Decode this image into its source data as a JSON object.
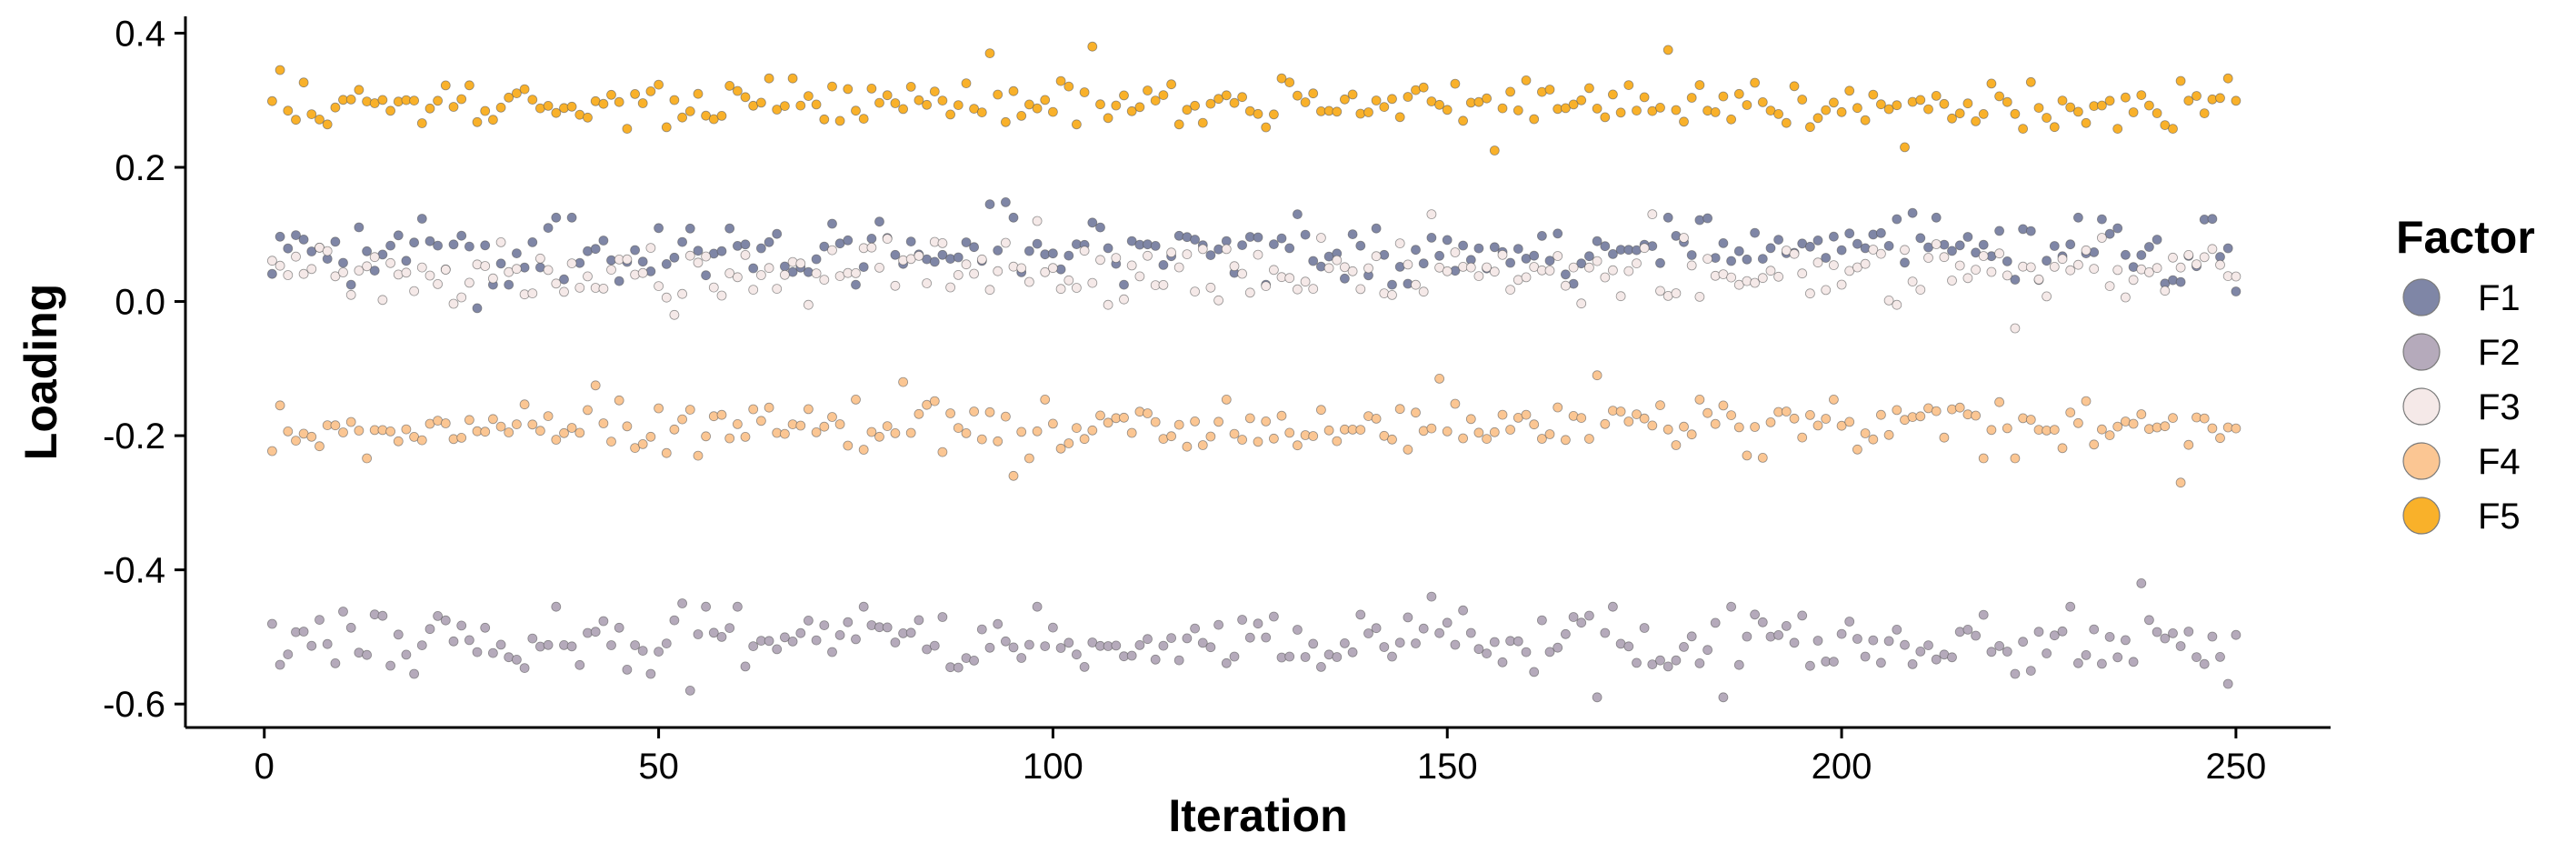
{
  "chart_data": {
    "type": "scatter",
    "title": "",
    "xlabel": "Iteration",
    "ylabel": "Loading",
    "xlim": [
      -10,
      262
    ],
    "ylim": [
      -0.635,
      0.425
    ],
    "x_ticks": [
      0,
      50,
      100,
      150,
      200,
      250
    ],
    "y_ticks": [
      -0.6,
      -0.4,
      -0.2,
      0.0,
      0.2,
      0.4
    ],
    "y_tick_labels": [
      "-0.6",
      "-0.4",
      "-0.2",
      "0.0",
      "0.2",
      "0.4"
    ],
    "grid": false,
    "legend": {
      "title": "Factor",
      "position": "right"
    },
    "x": {
      "start": 1,
      "end": 250
    },
    "series": [
      {
        "name": "F1",
        "color": "#7f86a6",
        "mean": 0.075,
        "spread": 0.04,
        "highlights": [
          [
            92,
            0.145
          ],
          [
            94,
            0.148
          ],
          [
            131,
            0.13
          ],
          [
            178,
            0.125
          ],
          [
            209,
            0.132
          ],
          [
            250,
            0.015
          ],
          [
            27,
            -0.01
          ]
        ]
      },
      {
        "name": "F2",
        "color": "#b5aabb",
        "mean": -0.505,
        "spread": 0.04,
        "highlights": [
          [
            53,
            -0.45
          ],
          [
            54,
            -0.58
          ],
          [
            148,
            -0.44
          ],
          [
            169,
            -0.59
          ],
          [
            185,
            -0.59
          ],
          [
            238,
            -0.42
          ],
          [
            249,
            -0.57
          ]
        ]
      },
      {
        "name": "F3",
        "color": "#f5e9e8",
        "mean": 0.045,
        "spread": 0.04,
        "highlights": [
          [
            52,
            -0.02
          ],
          [
            98,
            0.12
          ],
          [
            148,
            0.13
          ],
          [
            222,
            -0.04
          ],
          [
            176,
            0.13
          ]
        ]
      },
      {
        "name": "F4",
        "color": "#fbc693",
        "mean": -0.19,
        "spread": 0.035,
        "highlights": [
          [
            42,
            -0.125
          ],
          [
            81,
            -0.12
          ],
          [
            95,
            -0.26
          ],
          [
            149,
            -0.115
          ],
          [
            169,
            -0.11
          ],
          [
            243,
            -0.27
          ]
        ]
      },
      {
        "name": "F5",
        "color": "#f9b12a",
        "mean": 0.295,
        "spread": 0.03,
        "highlights": [
          [
            2,
            0.345
          ],
          [
            92,
            0.37
          ],
          [
            105,
            0.38
          ],
          [
            156,
            0.225
          ],
          [
            178,
            0.375
          ],
          [
            208,
            0.23
          ]
        ]
      }
    ]
  }
}
